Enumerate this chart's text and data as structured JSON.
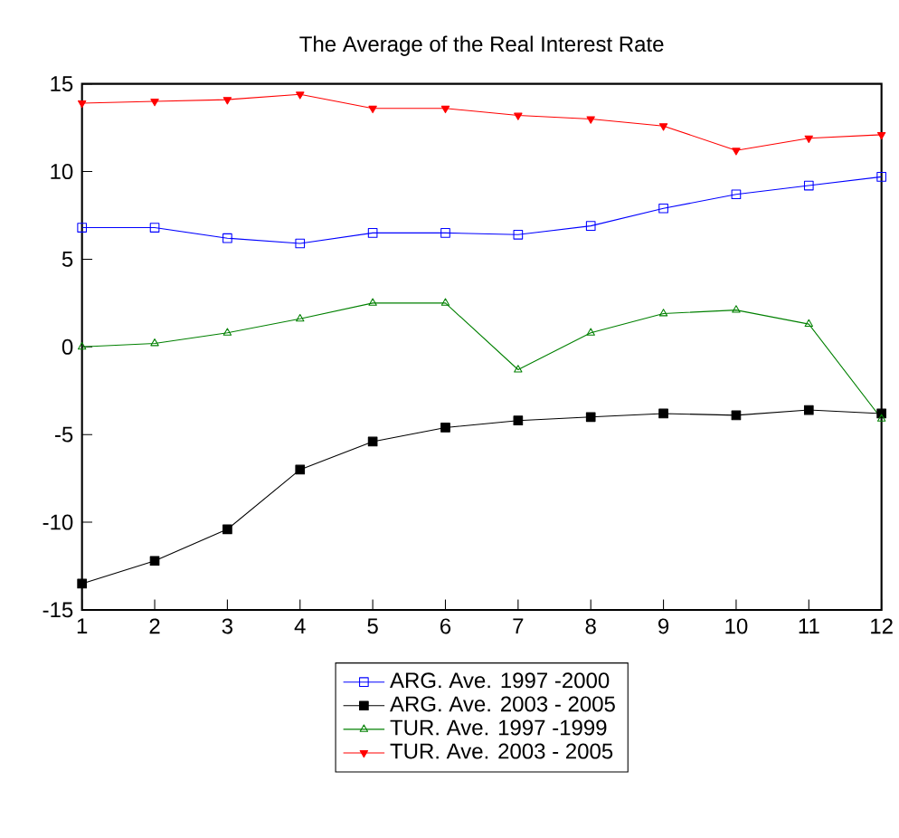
{
  "chart_data": {
    "type": "line",
    "title": "The Average of the Real Interest Rate",
    "x": [
      1,
      2,
      3,
      4,
      5,
      6,
      7,
      8,
      9,
      10,
      11,
      12
    ],
    "xlim": [
      1,
      12
    ],
    "xticks": [
      1,
      2,
      3,
      4,
      5,
      6,
      7,
      8,
      9,
      10,
      11,
      12
    ],
    "ylim": [
      -15,
      15
    ],
    "yticks": [
      -15,
      -10,
      -5,
      0,
      5,
      10,
      15
    ],
    "legend": "bottom",
    "grid": false,
    "line_style": "solid",
    "series": [
      {
        "name": "ARG. Ave. 1997 -2000",
        "color": "#0000ff",
        "marker": "square",
        "values": [
          6.8,
          6.8,
          6.2,
          5.9,
          6.5,
          6.5,
          6.4,
          6.9,
          7.9,
          8.7,
          9.2,
          9.7
        ]
      },
      {
        "name": "ARG. Ave. 2003 - 2005",
        "color": "#000000",
        "marker": "square",
        "values": [
          -13.5,
          -12.2,
          -10.4,
          -7.0,
          -5.4,
          -4.6,
          -4.2,
          -4.0,
          -3.8,
          -3.9,
          -3.6,
          -3.8
        ]
      },
      {
        "name": "TUR. Ave. 1997 -1999",
        "color": "#008000",
        "marker": "triangle",
        "values": [
          0,
          0.2,
          0.8,
          1.6,
          2.5,
          2.5,
          -1.3,
          0.8,
          1.9,
          2.1,
          1.3,
          -4.1
        ]
      },
      {
        "name": "TUR. Ave. 2003 - 2005",
        "color": "#ff0000",
        "marker": "triangle",
        "values": [
          13.9,
          14.0,
          14.1,
          14.4,
          13.6,
          13.6,
          13.2,
          13.0,
          12.6,
          11.2,
          11.9,
          12.1
        ]
      }
    ]
  }
}
